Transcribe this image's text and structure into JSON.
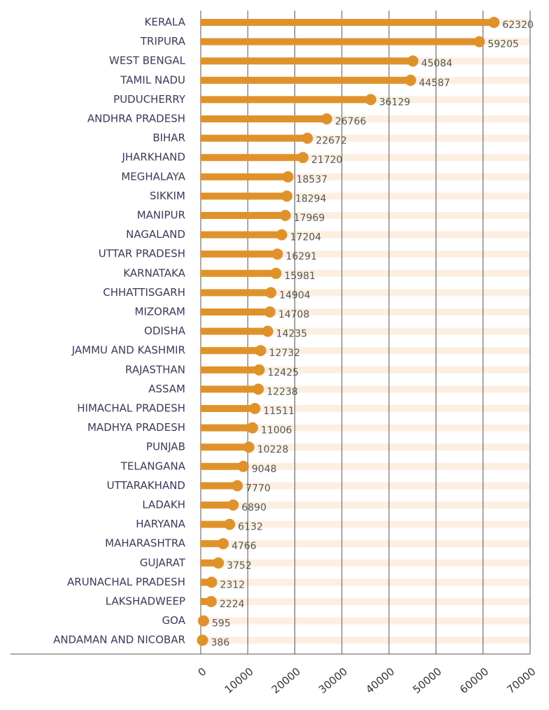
{
  "chart_data": {
    "type": "lollipop",
    "categories": [
      "KERALA",
      "TRIPURA",
      "WEST BENGAL",
      "TAMIL NADU",
      "PUDUCHERRY",
      "ANDHRA PRADESH",
      "BIHAR",
      "JHARKHAND",
      "MEGHALAYA",
      "SIKKIM",
      "MANIPUR",
      "NAGALAND",
      "UTTAR PRADESH",
      "KARNATAKA",
      "CHHATTISGARH",
      "MIZORAM",
      "ODISHA",
      "JAMMU AND KASHMIR",
      "RAJASTHAN",
      "ASSAM",
      "HIMACHAL PRADESH",
      "MADHYA PRADESH",
      "PUNJAB",
      "TELANGANA",
      "UTTARAKHAND",
      "LADAKH",
      "HARYANA",
      "MAHARASHTRA",
      "GUJARAT",
      "ARUNACHAL PRADESH",
      "LAKSHADWEEP",
      "GOA",
      "ANDAMAN AND NICOBAR"
    ],
    "values": [
      62320,
      59205,
      45084,
      44587,
      36129,
      26766,
      22672,
      21720,
      18537,
      18294,
      17969,
      17204,
      16291,
      15981,
      14904,
      14708,
      14235,
      12732,
      12425,
      12238,
      11511,
      11006,
      10228,
      9048,
      7770,
      6890,
      6132,
      4766,
      3752,
      2312,
      2224,
      595,
      386
    ],
    "color": "#e0922a",
    "track_color": "#fcefe0",
    "xlim": [
      0,
      70000
    ],
    "xticks": [
      0,
      10000,
      20000,
      30000,
      40000,
      50000,
      60000,
      70000
    ],
    "grid": true
  }
}
